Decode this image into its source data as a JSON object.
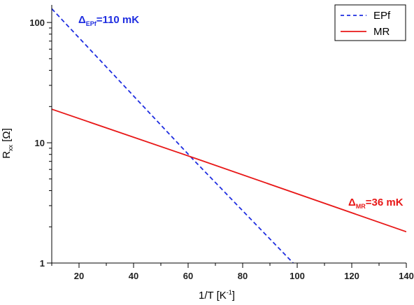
{
  "chart_data": {
    "type": "line",
    "log_y": true,
    "xlim": [
      10,
      140
    ],
    "ylim": [
      1,
      140
    ],
    "x_ticks": [
      20,
      40,
      60,
      80,
      100,
      120,
      140
    ],
    "y_ticks": [
      1,
      10,
      100
    ],
    "xlabel": "1/T  [K",
    "xlabel_sup": "-1",
    "xlabel_close": "]",
    "ylabel": "R",
    "ylabel_sub": "xx",
    "ylabel_unit": "  [Ω]",
    "legend_position": "top-right",
    "series": [
      {
        "name": "EPf",
        "color": "#1f2ee0",
        "dash": "dashed",
        "points": [
          [
            10,
            130
          ],
          [
            62,
            7.2
          ],
          [
            98.5,
            1
          ]
        ]
      },
      {
        "name": "MR",
        "color": "#e81818",
        "dash": "solid",
        "points": [
          [
            10,
            19
          ],
          [
            62,
            7.5
          ],
          [
            140,
            1.82
          ]
        ]
      }
    ],
    "annotations": [
      {
        "delta": "Δ",
        "sub": "EPf",
        "text": "=110 mK",
        "color": "#1f2ee0"
      },
      {
        "delta": "Δ",
        "sub": "MR",
        "text": "=36 mK",
        "color": "#e81818"
      }
    ]
  }
}
